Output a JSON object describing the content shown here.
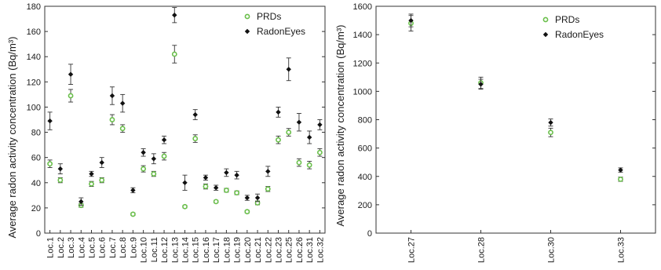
{
  "colors": {
    "prds": "#6abf4b",
    "radoneyes": "#111111",
    "axis": "#333333",
    "errorbar": "#333333"
  },
  "chart_data": [
    {
      "type": "scatter",
      "ylabel": "Average radon activity concentration (Bq/m³)",
      "ylim": [
        0,
        180
      ],
      "yticks": [
        0,
        20,
        40,
        60,
        80,
        100,
        120,
        140,
        160,
        180
      ],
      "grid": false,
      "legend_position": "top-right",
      "categories": [
        "Loc.1",
        "Loc.2",
        "Loc.3",
        "Loc.4",
        "Loc.5",
        "Loc.6",
        "Loc.7",
        "Loc.8",
        "Loc.9",
        "Loc.10",
        "Loc.11",
        "Loc.12",
        "Loc.13",
        "Loc.14",
        "Loc.15",
        "Loc.16",
        "Loc.17",
        "Loc.18",
        "Loc.19",
        "Loc.20",
        "Loc.21",
        "Loc.22",
        "Loc.23",
        "Loc.25",
        "Loc.26",
        "Loc.31",
        "Loc.32"
      ],
      "series": [
        {
          "name": "PRDs",
          "marker": "open-circle",
          "color": "#6abf4b",
          "values": [
            55,
            42,
            109,
            22,
            39,
            42,
            90,
            83,
            15,
            51,
            47,
            61,
            142,
            21,
            75,
            37,
            25,
            34,
            32,
            17,
            24,
            35,
            74,
            80,
            56,
            54,
            64
          ],
          "errors": [
            3,
            2,
            5,
            1.5,
            2,
            2,
            4,
            3,
            1,
            2.5,
            2,
            3,
            7,
            1,
            3,
            2,
            1,
            1.5,
            1.5,
            1,
            1.5,
            2,
            3,
            3,
            3,
            3,
            3
          ]
        },
        {
          "name": "RadonEyes",
          "marker": "filled-diamond",
          "color": "#111111",
          "values": [
            89,
            51,
            126,
            25,
            47,
            56,
            109,
            103,
            34,
            64,
            59,
            74,
            173,
            40,
            94,
            44,
            36,
            48,
            46,
            28,
            28,
            49,
            96,
            130,
            88,
            76,
            86
          ],
          "errors": [
            7,
            4,
            8,
            3,
            2,
            4,
            7,
            7,
            2,
            3,
            4,
            3,
            6,
            6,
            4,
            2,
            2,
            3,
            3,
            2,
            3,
            4,
            4,
            9,
            7,
            5,
            4
          ]
        }
      ]
    },
    {
      "type": "scatter",
      "ylabel": "Average radon activity concentration (Bq/m³)",
      "ylim": [
        0,
        1600
      ],
      "yticks": [
        0,
        200,
        400,
        600,
        800,
        1000,
        1200,
        1400,
        1600
      ],
      "grid": false,
      "legend_position": "top-right",
      "categories": [
        "Loc.27",
        "Loc.28",
        "Loc.30",
        "Loc.33"
      ],
      "series": [
        {
          "name": "PRDs",
          "marker": "open-circle",
          "color": "#6abf4b",
          "values": [
            1480,
            1060,
            710,
            380
          ],
          "errors": [
            55,
            40,
            30,
            15
          ]
        },
        {
          "name": "RadonEyes",
          "marker": "filled-diamond",
          "color": "#111111",
          "values": [
            1500,
            1050,
            780,
            445
          ],
          "errors": [
            45,
            35,
            25,
            15
          ]
        }
      ]
    }
  ]
}
